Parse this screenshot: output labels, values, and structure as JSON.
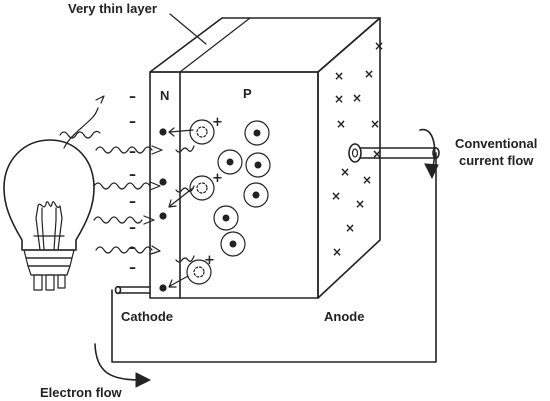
{
  "labels": {
    "top_layer": "Very thin layer",
    "n_region": "N",
    "p_region": "P",
    "conventional": [
      "Conventional",
      "current flow"
    ],
    "cathode": "Cathode",
    "anode": "Anode",
    "electron_flow": "Electron flow"
  },
  "symbols": {
    "negative": "–",
    "positive": "+",
    "cross": "×"
  },
  "colors": {
    "ink": "#222222",
    "background": "#ffffff"
  }
}
